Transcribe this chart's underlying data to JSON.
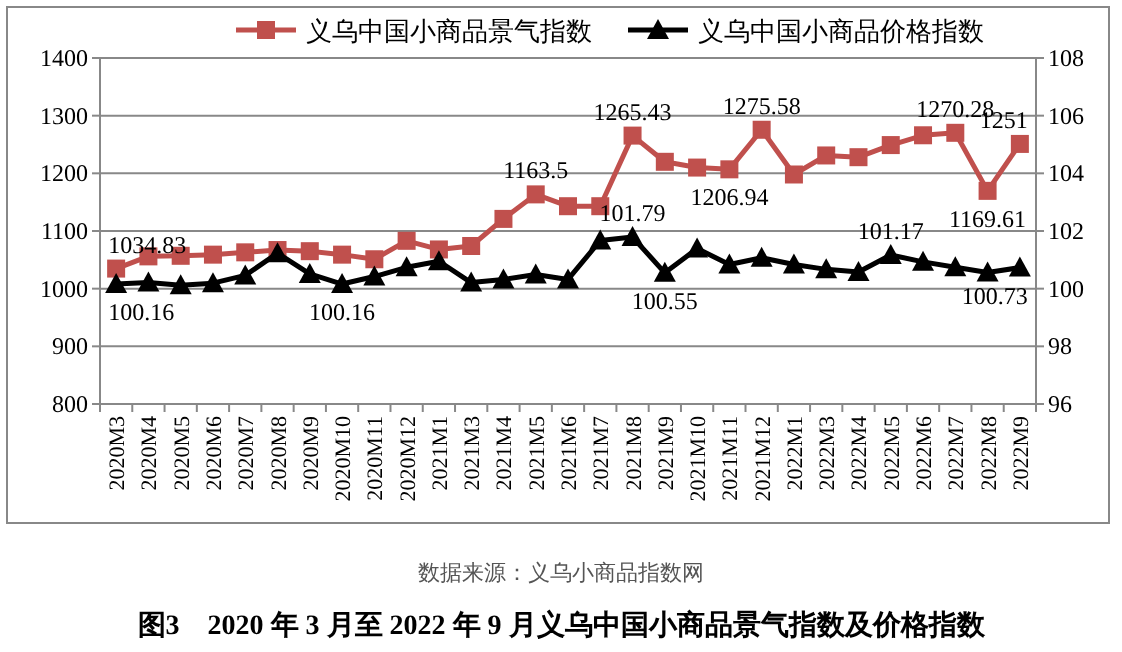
{
  "chart_data": {
    "type": "line",
    "title": "图3　2020 年 3 月至 2022 年 9 月义乌中国小商品景气指数及价格指数",
    "annotations": [
      "数据来源：义乌小商品指数网"
    ],
    "categories": [
      "2020M3",
      "2020M4",
      "2020M5",
      "2020M6",
      "2020M7",
      "2020M8",
      "2020M9",
      "2020M10",
      "2020M11",
      "2020M12",
      "2021M1",
      "2021M3",
      "2021M4",
      "2021M5",
      "2021M6",
      "2021M7",
      "2021M8",
      "2021M9",
      "2021M10",
      "2021M11",
      "2021M12",
      "2022M1",
      "2022M3",
      "2022M4",
      "2022M5",
      "2022M6",
      "2022M7",
      "2022M8",
      "2022M9"
    ],
    "series": [
      {
        "name": "义乌中国小商品景气指数",
        "color": "#c0504d",
        "marker": "square",
        "values": [
          1034.83,
          1056,
          1057,
          1059,
          1063,
          1067,
          1065,
          1059,
          1051,
          1083,
          1068,
          1074,
          1121,
          1163.5,
          1143,
          1143,
          1265.43,
          1220,
          1210,
          1206.94,
          1275.58,
          1198,
          1231,
          1228,
          1249,
          1266,
          1270.28,
          1169.61,
          1251
        ],
        "value_labels": [
          "1034.83",
          null,
          null,
          null,
          null,
          null,
          null,
          null,
          null,
          null,
          null,
          null,
          null,
          "1163.5",
          null,
          null,
          "1265.43",
          null,
          null,
          "1206.94",
          "1275.58",
          null,
          null,
          null,
          null,
          null,
          "1270.28",
          "1169.61",
          "1251"
        ]
      },
      {
        "name": "义乌中国小商品价格指数",
        "color": "#000000",
        "marker": "triangle",
        "axis": "y2",
        "values": [
          100.16,
          100.21,
          100.12,
          100.19,
          100.46,
          101.23,
          100.51,
          100.16,
          100.42,
          100.74,
          100.95,
          100.21,
          100.32,
          100.49,
          100.32,
          101.67,
          101.79,
          100.55,
          101.39,
          100.84,
          101.07,
          100.84,
          100.67,
          100.58,
          101.17,
          100.93,
          100.74,
          100.56,
          100.73
        ],
        "value_labels": [
          "100.16",
          null,
          null,
          null,
          null,
          null,
          null,
          "100.16",
          null,
          null,
          null,
          null,
          null,
          null,
          null,
          null,
          "101.79",
          "100.55",
          null,
          null,
          null,
          null,
          null,
          null,
          "101.17",
          null,
          null,
          null,
          "100.73"
        ]
      }
    ],
    "ylim": [
      800,
      1400
    ],
    "yticks": [
      800,
      900,
      1000,
      1100,
      1200,
      1300,
      1400
    ],
    "y2lim": [
      96,
      108
    ],
    "y2ticks": [
      96,
      98,
      100,
      102,
      104,
      106,
      108
    ],
    "grid": "y",
    "legend": "top",
    "line_style": "solid"
  }
}
